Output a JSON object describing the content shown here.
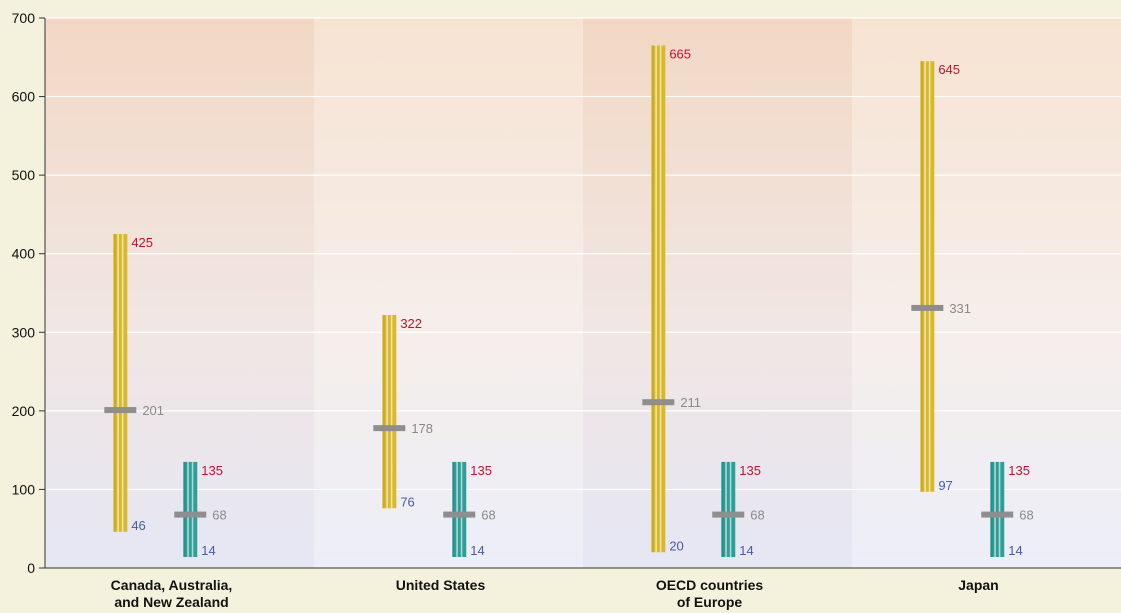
{
  "chart_data": {
    "type": "range",
    "title": "",
    "xlabel": "",
    "ylabel": "",
    "ylim": [
      0,
      700
    ],
    "yticks": [
      "0",
      "100",
      "200",
      "300",
      "400",
      "500",
      "600",
      "700"
    ],
    "grid": true,
    "categories": [
      {
        "line1": "Canada, Australia,",
        "line2": "and New Zealand"
      },
      {
        "line1": "United States",
        "line2": ""
      },
      {
        "line1": "OECD countries",
        "line2": "of Europe"
      },
      {
        "line1": "Japan",
        "line2": ""
      }
    ],
    "series": [
      {
        "color": "#d8b92c",
        "ranges": [
          {
            "low": 46,
            "mid": 201,
            "high": 425
          },
          {
            "low": 76,
            "mid": 178,
            "high": 322
          },
          {
            "low": 20,
            "mid": 211,
            "high": 665
          },
          {
            "low": 97,
            "mid": 331,
            "high": 645
          }
        ]
      },
      {
        "color": "#2f9e98",
        "ranges": [
          {
            "low": 14,
            "mid": 68,
            "high": 135
          },
          {
            "low": 14,
            "mid": 68,
            "high": 135
          },
          {
            "low": 14,
            "mid": 68,
            "high": 135
          },
          {
            "low": 14,
            "mid": 68,
            "high": 135
          }
        ]
      }
    ],
    "label_colors": {
      "high": "#c8102e",
      "mid": "#8a8a8a",
      "low": "#4a5aa8"
    }
  }
}
